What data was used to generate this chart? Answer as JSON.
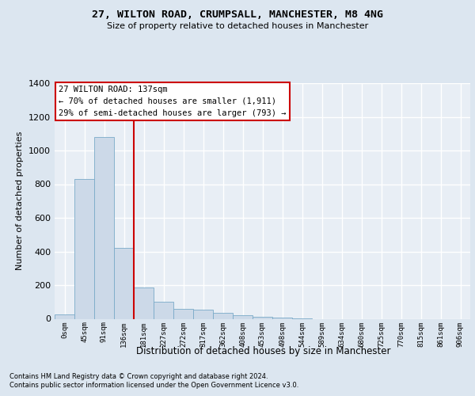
{
  "title": "27, WILTON ROAD, CRUMPSALL, MANCHESTER, M8 4NG",
  "subtitle": "Size of property relative to detached houses in Manchester",
  "xlabel": "Distribution of detached houses by size in Manchester",
  "ylabel": "Number of detached properties",
  "bar_labels": [
    "0sqm",
    "45sqm",
    "91sqm",
    "136sqm",
    "181sqm",
    "227sqm",
    "272sqm",
    "317sqm",
    "362sqm",
    "408sqm",
    "453sqm",
    "498sqm",
    "544sqm",
    "589sqm",
    "634sqm",
    "680sqm",
    "725sqm",
    "770sqm",
    "815sqm",
    "861sqm",
    "906sqm"
  ],
  "bar_values": [
    25,
    830,
    1080,
    420,
    185,
    100,
    58,
    55,
    35,
    20,
    10,
    5,
    3,
    0,
    0,
    0,
    0,
    0,
    0,
    0,
    0
  ],
  "bar_color": "#ccd9e8",
  "bar_edge_color": "#7aaac8",
  "vline_color": "#cc0000",
  "annotation_box_edge_color": "#cc0000",
  "ylim": [
    0,
    1400
  ],
  "yticks": [
    0,
    200,
    400,
    600,
    800,
    1000,
    1200,
    1400
  ],
  "bg_color": "#dce6f0",
  "plot_bg_color": "#e8eef5",
  "property_label": "27 WILTON ROAD: 137sqm",
  "annotation_line1": "← 70% of detached houses are smaller (1,911)",
  "annotation_line2": "29% of semi-detached houses are larger (793) →",
  "footer_line1": "Contains HM Land Registry data © Crown copyright and database right 2024.",
  "footer_line2": "Contains public sector information licensed under the Open Government Licence v3.0.",
  "vline_x": 3.5
}
